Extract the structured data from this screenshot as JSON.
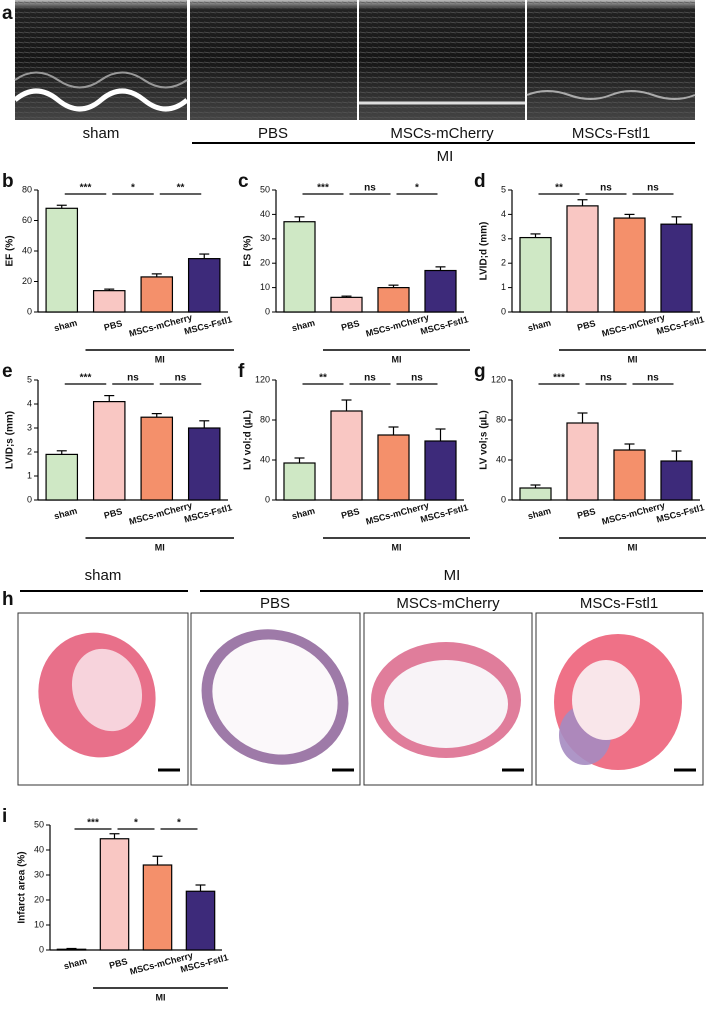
{
  "panel_a": {
    "letter": "a",
    "labels": [
      "sham",
      "PBS",
      "MSCs-mCherry",
      "MSCs-Fstl1"
    ],
    "group": "MI"
  },
  "panel_h": {
    "letter": "h",
    "sham": "sham",
    "group": "MI",
    "labels": [
      "PBS",
      "MSCs-mCherry",
      "MSCs-Fstl1"
    ]
  },
  "chart_data": [
    {
      "type": "bar",
      "panel": "b",
      "y_label": "EF (%)",
      "categories": [
        "sham",
        "PBS",
        "MSCs-mCherry",
        "MSCs-Fstl1"
      ],
      "group_label": "MI",
      "values": [
        68,
        14,
        23,
        35
      ],
      "errors": [
        2,
        1,
        2,
        3
      ],
      "colors": [
        "#cfe8c5",
        "#f9c7c3",
        "#f4906b",
        "#3d2a7a"
      ],
      "ylim": [
        0,
        80
      ],
      "yticks": [
        0,
        20,
        40,
        60,
        80
      ],
      "significance": [
        "***",
        "*",
        "**"
      ]
    },
    {
      "type": "bar",
      "panel": "c",
      "y_label": "FS (%)",
      "categories": [
        "sham",
        "PBS",
        "MSCs-mCherry",
        "MSCs-Fstl1"
      ],
      "group_label": "MI",
      "values": [
        37,
        6,
        10,
        17
      ],
      "errors": [
        2,
        0.5,
        1,
        1.5
      ],
      "colors": [
        "#cfe8c5",
        "#f9c7c3",
        "#f4906b",
        "#3d2a7a"
      ],
      "ylim": [
        0,
        50
      ],
      "yticks": [
        0,
        10,
        20,
        30,
        40,
        50
      ],
      "significance": [
        "***",
        "ns",
        "*"
      ]
    },
    {
      "type": "bar",
      "panel": "d",
      "y_label": "LVID;d (mm)",
      "categories": [
        "sham",
        "PBS",
        "MSCs-mCherry",
        "MSCs-Fstl1"
      ],
      "group_label": "MI",
      "values": [
        3.05,
        4.35,
        3.85,
        3.6
      ],
      "errors": [
        0.15,
        0.25,
        0.15,
        0.3
      ],
      "colors": [
        "#cfe8c5",
        "#f9c7c3",
        "#f4906b",
        "#3d2a7a"
      ],
      "ylim": [
        0,
        5
      ],
      "yticks": [
        0,
        1,
        2,
        3,
        4,
        5
      ],
      "significance": [
        "**",
        "ns",
        "ns"
      ]
    },
    {
      "type": "bar",
      "panel": "e",
      "y_label": "LVID;s (mm)",
      "categories": [
        "sham",
        "PBS",
        "MSCs-mCherry",
        "MSCs-Fstl1"
      ],
      "group_label": "MI",
      "values": [
        1.9,
        4.1,
        3.45,
        3.0
      ],
      "errors": [
        0.15,
        0.25,
        0.15,
        0.3
      ],
      "colors": [
        "#cfe8c5",
        "#f9c7c3",
        "#f4906b",
        "#3d2a7a"
      ],
      "ylim": [
        0,
        5
      ],
      "yticks": [
        0,
        1,
        2,
        3,
        4,
        5
      ],
      "significance": [
        "***",
        "ns",
        "ns"
      ]
    },
    {
      "type": "bar",
      "panel": "f",
      "y_label": "LV vol;d (µL)",
      "categories": [
        "sham",
        "PBS",
        "MSCs-mCherry",
        "MSCs-Fstl1"
      ],
      "group_label": "MI",
      "values": [
        37,
        89,
        65,
        59
      ],
      "errors": [
        5,
        11,
        8,
        12
      ],
      "colors": [
        "#cfe8c5",
        "#f9c7c3",
        "#f4906b",
        "#3d2a7a"
      ],
      "ylim": [
        0,
        120
      ],
      "yticks": [
        0,
        40,
        80,
        120
      ],
      "significance": [
        "**",
        "ns",
        "ns"
      ]
    },
    {
      "type": "bar",
      "panel": "g",
      "y_label": "LV vol;s (µL)",
      "categories": [
        "sham",
        "PBS",
        "MSCs-mCherry",
        "MSCs-Fstl1"
      ],
      "group_label": "MI",
      "values": [
        12,
        77,
        50,
        39
      ],
      "errors": [
        3,
        10,
        6,
        10
      ],
      "colors": [
        "#cfe8c5",
        "#f9c7c3",
        "#f4906b",
        "#3d2a7a"
      ],
      "ylim": [
        0,
        120
      ],
      "yticks": [
        0,
        40,
        80,
        120
      ],
      "significance": [
        "***",
        "ns",
        "ns"
      ]
    },
    {
      "type": "bar",
      "panel": "i",
      "y_label": "Infarct area (%)",
      "categories": [
        "sham",
        "PBS",
        "MSCs-mCherry",
        "MSCs-Fstl1"
      ],
      "group_label": "MI",
      "values": [
        0.3,
        44.5,
        34,
        23.5
      ],
      "errors": [
        0.3,
        2,
        3.5,
        2.5
      ],
      "colors": [
        "#cfe8c5",
        "#f9c7c3",
        "#f4906b",
        "#3d2a7a"
      ],
      "ylim": [
        0,
        50
      ],
      "yticks": [
        0,
        10,
        20,
        30,
        40,
        50
      ],
      "significance": [
        "***",
        "*",
        "*"
      ]
    }
  ]
}
